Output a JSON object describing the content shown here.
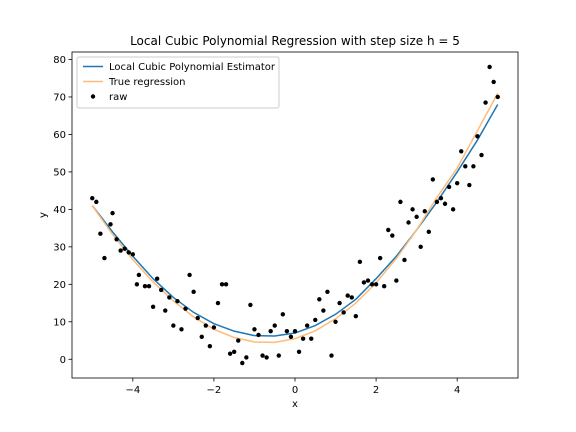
{
  "chart_data": {
    "type": "scatter",
    "title": "Local Cubic Polynomial Regression with step size h = 5",
    "xlabel": "x",
    "ylabel": "y",
    "xlim": [
      -5.5,
      5.5
    ],
    "ylim": [
      -5,
      82
    ],
    "xticks": [
      -4,
      -2,
      0,
      2,
      4
    ],
    "yticks": [
      0,
      10,
      20,
      30,
      40,
      50,
      60,
      70,
      80
    ],
    "grid": false,
    "legend_position": "upper-left",
    "legend": [
      "Local Cubic Polynomial Estimator",
      "True regression",
      "raw"
    ],
    "series": [
      {
        "name": "Local Cubic Polynomial Estimator",
        "kind": "line",
        "color": "#1f77b4",
        "x": [
          -5.0,
          -4.5,
          -4.0,
          -3.5,
          -3.0,
          -2.5,
          -2.0,
          -1.5,
          -1.0,
          -0.5,
          0.0,
          0.5,
          1.0,
          1.5,
          2.0,
          2.5,
          3.0,
          3.5,
          4.0,
          4.5,
          5.0
        ],
        "y": [
          41,
          34,
          27.5,
          21.5,
          16.5,
          12.5,
          9.5,
          7.5,
          6.3,
          6.2,
          7.0,
          9.0,
          12.0,
          16.0,
          21.5,
          27.5,
          34.5,
          42.0,
          50.0,
          58.5,
          68.0
        ]
      },
      {
        "name": "True regression",
        "kind": "line",
        "color": "#ffbb78",
        "x": [
          -5.0,
          -4.5,
          -4.0,
          -3.5,
          -3.0,
          -2.5,
          -2.0,
          -1.5,
          -1.0,
          -0.5,
          0.0,
          0.5,
          1.0,
          1.5,
          2.0,
          2.5,
          3.0,
          3.5,
          4.0,
          4.5,
          5.0
        ],
        "y": [
          41,
          33.3,
          26.6,
          20.6,
          15.6,
          11.3,
          8.0,
          5.8,
          4.6,
          4.5,
          5.5,
          7.6,
          10.8,
          15.0,
          20.4,
          26.9,
          34.5,
          43.2,
          51.0,
          61.0,
          71.0
        ]
      },
      {
        "name": "raw",
        "kind": "scatter",
        "color": "#000000",
        "x": [
          -5.0,
          -4.9,
          -4.8,
          -4.7,
          -4.55,
          -4.5,
          -4.4,
          -4.3,
          -4.2,
          -4.1,
          -4.0,
          -3.9,
          -3.85,
          -3.7,
          -3.6,
          -3.5,
          -3.4,
          -3.3,
          -3.2,
          -3.1,
          -3.0,
          -2.9,
          -2.8,
          -2.7,
          -2.6,
          -2.5,
          -2.4,
          -2.3,
          -2.2,
          -2.1,
          -2.0,
          -1.9,
          -1.8,
          -1.7,
          -1.6,
          -1.5,
          -1.4,
          -1.3,
          -1.2,
          -1.1,
          -1.0,
          -0.9,
          -0.8,
          -0.7,
          -0.6,
          -0.5,
          -0.4,
          -0.3,
          -0.2,
          -0.1,
          0.0,
          0.1,
          0.2,
          0.3,
          0.4,
          0.5,
          0.6,
          0.7,
          0.8,
          0.9,
          1.0,
          1.1,
          1.2,
          1.3,
          1.4,
          1.5,
          1.6,
          1.7,
          1.8,
          1.9,
          2.0,
          2.1,
          2.2,
          2.3,
          2.4,
          2.5,
          2.6,
          2.7,
          2.8,
          2.9,
          3.0,
          3.1,
          3.2,
          3.3,
          3.4,
          3.5,
          3.6,
          3.7,
          3.8,
          3.9,
          4.0,
          4.1,
          4.2,
          4.3,
          4.4,
          4.5,
          4.6,
          4.7,
          4.8,
          4.9,
          5.0
        ],
        "y": [
          43,
          42,
          33.5,
          27,
          36,
          39,
          32,
          29,
          29.5,
          28.5,
          28,
          20,
          22.5,
          19.5,
          19.5,
          14,
          21.5,
          18.5,
          13,
          16.5,
          9,
          15.5,
          8,
          13.5,
          22.5,
          18,
          11,
          6,
          9,
          3.5,
          8.5,
          15,
          20,
          20,
          1.5,
          2,
          5,
          -1,
          0.5,
          14.5,
          8,
          6.5,
          1,
          0.5,
          7.5,
          9,
          1,
          12,
          7.5,
          6,
          7.5,
          2,
          5.5,
          9,
          5.5,
          10.5,
          16,
          13,
          18,
          1,
          10,
          15,
          12.5,
          17,
          16.5,
          11.5,
          26,
          20.5,
          21,
          20,
          20,
          27,
          19.5,
          34.5,
          33,
          21,
          42,
          26.5,
          36.5,
          40,
          38,
          30,
          39.5,
          34,
          48,
          42,
          43,
          41.5,
          46,
          40,
          47,
          55.5,
          51.5,
          46.5,
          51.5,
          59.5,
          54.5,
          68.5,
          78,
          74,
          70
        ]
      }
    ]
  }
}
